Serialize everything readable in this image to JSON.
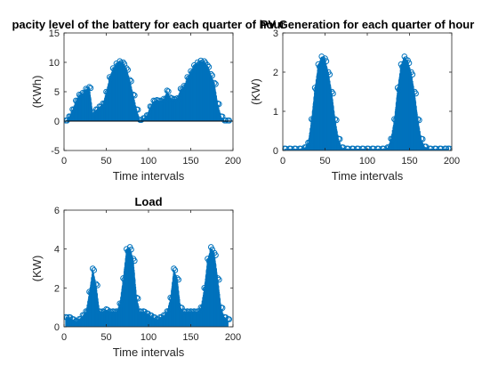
{
  "colors": {
    "series": "#0072BD",
    "axis": "#262626",
    "background": "#ffffff"
  },
  "chart_data": [
    {
      "type": "scatter",
      "title": "pacity level of the battery for each quarter of hour",
      "xlabel": "Time intervals",
      "ylabel": "(KWh)",
      "xlim": [
        0,
        200
      ],
      "ylim": [
        -5,
        15
      ],
      "xticks": [
        "0",
        "50",
        "100",
        "150",
        "200"
      ],
      "yticks": [
        "-5",
        "0",
        "5",
        "10",
        "15"
      ],
      "grid": false,
      "x": [
        2,
        6,
        10,
        14,
        18,
        22,
        26,
        30,
        34,
        38,
        42,
        46,
        50,
        54,
        58,
        62,
        66,
        70,
        74,
        78,
        82,
        86,
        90,
        94,
        98,
        102,
        106,
        110,
        114,
        118,
        122,
        126,
        130,
        134,
        138,
        142,
        146,
        150,
        154,
        158,
        162,
        166,
        170,
        174,
        178,
        182,
        186,
        190,
        194
      ],
      "y": [
        0.1,
        0.8,
        2.0,
        3.5,
        4.5,
        4.8,
        5.5,
        5.8,
        1.5,
        2.0,
        2.5,
        3.0,
        5.0,
        7.5,
        9.0,
        9.8,
        10.2,
        10.0,
        9.0,
        7.0,
        4.5,
        2.0,
        0.2,
        0.5,
        1.0,
        2.5,
        3.5,
        3.6,
        3.5,
        3.8,
        5.2,
        4.0,
        3.8,
        3.9,
        5.5,
        6.0,
        7.5,
        8.5,
        9.5,
        10.0,
        10.3,
        10.2,
        9.5,
        8.0,
        6.5,
        3.0,
        0.8,
        0.1,
        0.1
      ]
    },
    {
      "type": "scatter",
      "title": "PV Generation for each quarter of hour",
      "xlabel": "Time intervals",
      "ylabel": "(KW)",
      "xlim": [
        0,
        200
      ],
      "ylim": [
        0,
        3
      ],
      "xticks": [
        "0",
        "50",
        "100",
        "150",
        "200"
      ],
      "yticks": [
        "0",
        "1",
        "2",
        "3"
      ],
      "grid": false,
      "x": [
        2,
        8,
        14,
        20,
        26,
        30,
        34,
        38,
        42,
        46,
        50,
        54,
        58,
        62,
        66,
        70,
        76,
        82,
        88,
        94,
        100,
        106,
        112,
        118,
        124,
        128,
        132,
        136,
        140,
        144,
        148,
        152,
        156,
        160,
        164,
        168,
        174,
        180,
        186,
        192,
        196
      ],
      "y": [
        0.05,
        0.05,
        0.05,
        0.05,
        0.08,
        0.2,
        0.8,
        1.6,
        2.2,
        2.4,
        2.35,
        2.0,
        1.5,
        0.8,
        0.3,
        0.08,
        0.05,
        0.05,
        0.05,
        0.05,
        0.05,
        0.05,
        0.05,
        0.05,
        0.08,
        0.3,
        0.8,
        1.6,
        2.2,
        2.4,
        2.3,
        2.0,
        1.5,
        0.8,
        0.3,
        0.1,
        0.05,
        0.05,
        0.05,
        0.05,
        0.05
      ]
    },
    {
      "type": "scatter",
      "title": "Load",
      "xlabel": "Time intervals",
      "ylabel": "(KW)",
      "xlim": [
        0,
        200
      ],
      "ylim": [
        0,
        6
      ],
      "xticks": [
        "0",
        "50",
        "100",
        "150",
        "200"
      ],
      "yticks": [
        "0",
        "2",
        "4",
        "6"
      ],
      "grid": false,
      "x": [
        2,
        6,
        10,
        14,
        18,
        22,
        26,
        30,
        34,
        38,
        42,
        46,
        50,
        54,
        58,
        62,
        66,
        70,
        74,
        78,
        82,
        86,
        90,
        94,
        98,
        102,
        106,
        110,
        114,
        118,
        122,
        126,
        130,
        134,
        138,
        142,
        146,
        150,
        154,
        158,
        162,
        166,
        170,
        174,
        178,
        182,
        186,
        190,
        194
      ],
      "y": [
        0.5,
        0.5,
        0.4,
        0.3,
        0.4,
        0.6,
        0.8,
        1.8,
        3.0,
        2.2,
        0.8,
        0.8,
        0.9,
        0.8,
        0.8,
        0.8,
        1.2,
        2.5,
        4.0,
        4.1,
        3.5,
        1.5,
        0.8,
        0.8,
        0.7,
        0.6,
        0.5,
        0.4,
        0.5,
        0.6,
        0.8,
        1.5,
        3.0,
        2.5,
        1.0,
        0.8,
        0.8,
        0.8,
        0.8,
        0.8,
        1.0,
        2.0,
        3.5,
        4.1,
        3.8,
        2.5,
        1.0,
        0.5,
        0.4
      ]
    }
  ]
}
